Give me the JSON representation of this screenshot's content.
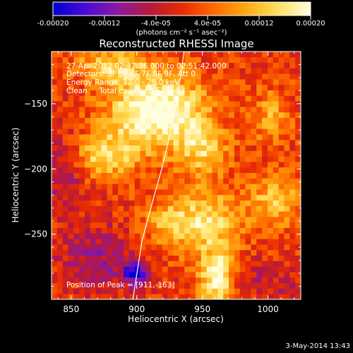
{
  "chart_data": {
    "type": "heatmap",
    "title": "Reconstructed RHESSI Image",
    "xlabel": "Heliocentric X (arcsec)",
    "ylabel": "Heliocentric Y (arcsec)",
    "xlim": [
      835,
      1025
    ],
    "ylim": [
      -300,
      -110
    ],
    "x_ticks": [
      850,
      900,
      950,
      1000
    ],
    "y_ticks": [
      -150,
      -200,
      -250
    ],
    "colorbar": {
      "label": "(photons cm⁻² s⁻¹ asec⁻²)",
      "range": [
        -0.0002,
        0.0002
      ],
      "tick_values": [
        -0.0002,
        -0.00012,
        -4e-05,
        4e-05,
        0.00012,
        0.0002
      ],
      "tick_labels": [
        "-0.00020",
        "-0.00012",
        "-4.0e-05",
        "4.0e-05",
        "0.00012",
        "0.00020"
      ],
      "colormap": [
        "#0000d0",
        "#4a0ad8",
        "#8a1aa0",
        "#b5183f",
        "#e82a00",
        "#ff6a00",
        "#ffaa10",
        "#ffe060",
        "#ffffe0"
      ]
    },
    "annotations": [
      "27-Apr-2012 02:47:36.000 to 02:51:42.000",
      "Detectors: 3F 5F 6F 7F 8F 9F, Att 0",
      "Energy Range: 12.0 - 25.0 keV",
      "Clean     Total counts: 3.51E+03"
    ],
    "peak_label": "Position of Peak = [911,-163]",
    "peak_position": [
      911,
      -163
    ],
    "limb_curve": {
      "x": [
        936,
        934,
        930,
        925,
        919,
        912,
        904,
        897
      ],
      "y": [
        -110,
        -125,
        -150,
        -175,
        -200,
        -225,
        -255,
        -300
      ]
    },
    "grid": false,
    "image_grid": {
      "nx": 45,
      "ny": 45,
      "blobs": [
        {
          "x": 915,
          "y": -155,
          "amp": 0.00022,
          "sx": 26,
          "sy": 20
        },
        {
          "x": 880,
          "y": -120,
          "amp": 0.00012,
          "sx": 18,
          "sy": 10
        },
        {
          "x": 875,
          "y": -190,
          "amp": 0.00014,
          "sx": 18,
          "sy": 12
        },
        {
          "x": 950,
          "y": -185,
          "amp": 0.00012,
          "sx": 14,
          "sy": 14
        },
        {
          "x": 955,
          "y": -240,
          "amp": 0.00014,
          "sx": 16,
          "sy": 18
        },
        {
          "x": 962,
          "y": -285,
          "amp": 0.00018,
          "sx": 10,
          "sy": 16
        },
        {
          "x": 1005,
          "y": -225,
          "amp": 0.00012,
          "sx": 14,
          "sy": 14
        },
        {
          "x": 1002,
          "y": -160,
          "amp": 9e-05,
          "sx": 10,
          "sy": 14
        },
        {
          "x": 925,
          "y": -240,
          "amp": 0.0001,
          "sx": 14,
          "sy": 14
        },
        {
          "x": 845,
          "y": -200,
          "amp": -8e-05,
          "sx": 12,
          "sy": 22
        },
        {
          "x": 870,
          "y": -270,
          "amp": -9e-05,
          "sx": 20,
          "sy": 18
        },
        {
          "x": 900,
          "y": -280,
          "amp": -0.00018,
          "sx": 7,
          "sy": 6
        },
        {
          "x": 985,
          "y": -285,
          "amp": -6e-05,
          "sx": 12,
          "sy": 10
        },
        {
          "x": 1015,
          "y": -290,
          "amp": -5e-05,
          "sx": 10,
          "sy": 10
        }
      ]
    }
  },
  "timestamp": "3-May-2014 13:43"
}
